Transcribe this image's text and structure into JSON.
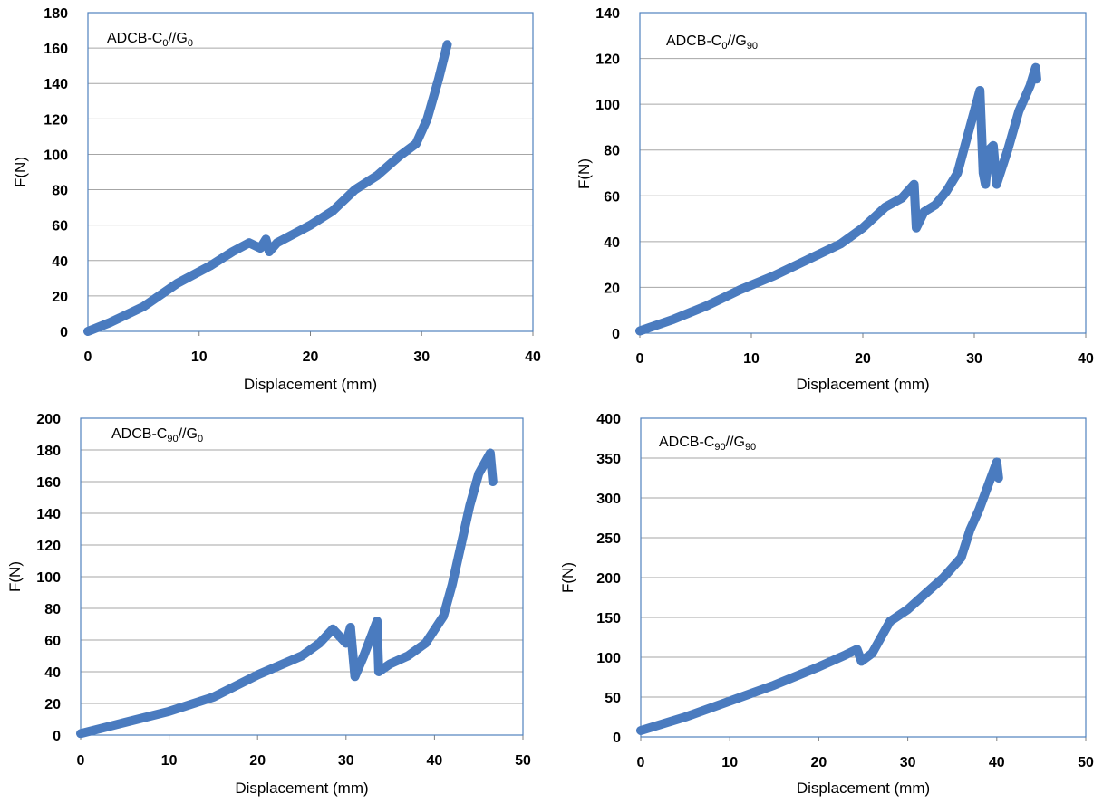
{
  "colors": {
    "series": "#4a7bbf",
    "grid": "#a6a6a6",
    "frame": "#4f81bd",
    "text": "#000000"
  },
  "chart_data": [
    {
      "type": "scatter",
      "title": {
        "main": "ADCB-C",
        "sub1": "0",
        "mid": "//G",
        "sub2": "0"
      },
      "xlabel": "Displacement (mm)",
      "ylabel": "F(N)",
      "xlim": [
        0,
        40
      ],
      "ylim": [
        0,
        180
      ],
      "xticks": [
        "0",
        "10",
        "20",
        "30",
        "40"
      ],
      "yticks": [
        "0",
        "20",
        "40",
        "60",
        "80",
        "100",
        "120",
        "140",
        "160",
        "180"
      ],
      "grid": "horizontal",
      "legend": "none",
      "series": [
        {
          "points": [
            [
              0,
              0
            ],
            [
              2,
              5
            ],
            [
              5,
              14
            ],
            [
              8,
              27
            ],
            [
              11,
              37
            ],
            [
              13,
              45
            ],
            [
              14.5,
              50
            ],
            [
              15.5,
              47
            ],
            [
              16,
              52
            ],
            [
              16.3,
              45
            ],
            [
              17,
              50
            ],
            [
              20,
              60
            ],
            [
              22,
              68
            ],
            [
              24,
              80
            ],
            [
              26,
              88
            ],
            [
              28,
              99
            ],
            [
              29.5,
              106
            ],
            [
              30.5,
              120
            ],
            [
              31.5,
              142
            ],
            [
              32.3,
              162
            ]
          ]
        }
      ]
    },
    {
      "type": "scatter",
      "title": {
        "main": "ADCB-C",
        "sub1": "0",
        "mid": "//G",
        "sub2": "90"
      },
      "xlabel": "Displacement (mm)",
      "ylabel": "F(N)",
      "xlim": [
        0,
        40
      ],
      "ylim": [
        0,
        140
      ],
      "xticks": [
        "0",
        "10",
        "20",
        "30",
        "40"
      ],
      "yticks": [
        "0",
        "20",
        "40",
        "60",
        "80",
        "100",
        "120",
        "140"
      ],
      "grid": "horizontal",
      "legend": "none",
      "series": [
        {
          "points": [
            [
              0,
              1
            ],
            [
              3,
              6
            ],
            [
              6,
              12
            ],
            [
              9,
              19
            ],
            [
              12,
              25
            ],
            [
              15,
              32
            ],
            [
              18,
              39
            ],
            [
              20,
              46
            ],
            [
              22,
              55
            ],
            [
              23.5,
              59
            ],
            [
              24.6,
              65
            ],
            [
              24.8,
              46
            ],
            [
              25.5,
              53
            ],
            [
              26.5,
              56
            ],
            [
              27.5,
              62
            ],
            [
              28.5,
              70
            ],
            [
              29.5,
              88
            ],
            [
              30.5,
              106
            ],
            [
              30.8,
              70
            ],
            [
              31,
              65
            ],
            [
              31.3,
              80
            ],
            [
              31.7,
              82
            ],
            [
              32,
              65
            ],
            [
              33,
              80
            ],
            [
              34,
              97
            ],
            [
              35,
              108
            ],
            [
              35.5,
              116
            ],
            [
              35.6,
              111
            ]
          ]
        }
      ]
    },
    {
      "type": "scatter",
      "title": {
        "main": "ADCB-C",
        "sub1": "90",
        "mid": "//G",
        "sub2": "0"
      },
      "xlabel": "Displacement (mm)",
      "ylabel": "F(N)",
      "xlim": [
        0,
        50
      ],
      "ylim": [
        0,
        200
      ],
      "xticks": [
        "0",
        "10",
        "20",
        "30",
        "40",
        "50"
      ],
      "yticks": [
        "0",
        "20",
        "40",
        "60",
        "80",
        "100",
        "120",
        "140",
        "160",
        "180",
        "200"
      ],
      "grid": "horizontal",
      "legend": "none",
      "series": [
        {
          "points": [
            [
              0,
              1
            ],
            [
              5,
              8
            ],
            [
              10,
              15
            ],
            [
              15,
              24
            ],
            [
              20,
              38
            ],
            [
              25,
              50
            ],
            [
              27,
              58
            ],
            [
              28.5,
              67
            ],
            [
              30,
              58
            ],
            [
              30.5,
              68
            ],
            [
              31,
              37
            ],
            [
              32,
              50
            ],
            [
              33.5,
              72
            ],
            [
              33.7,
              40
            ],
            [
              35,
              45
            ],
            [
              37,
              50
            ],
            [
              39,
              58
            ],
            [
              41,
              75
            ],
            [
              42,
              95
            ],
            [
              43,
              120
            ],
            [
              44,
              145
            ],
            [
              45,
              165
            ],
            [
              46.3,
              178
            ],
            [
              46.6,
              160
            ]
          ]
        }
      ]
    },
    {
      "type": "scatter",
      "title": {
        "main": "ADCB-C",
        "sub1": "90",
        "mid": "//G",
        "sub2": "90"
      },
      "xlabel": "Displacement (mm)",
      "ylabel": "F(N)",
      "xlim": [
        0,
        50
      ],
      "ylim": [
        0,
        400
      ],
      "xticks": [
        "0",
        "10",
        "20",
        "30",
        "40",
        "50"
      ],
      "yticks": [
        "0",
        "50",
        "100",
        "150",
        "200",
        "250",
        "300",
        "350",
        "400"
      ],
      "grid": "horizontal",
      "legend": "none",
      "series": [
        {
          "points": [
            [
              0,
              8
            ],
            [
              5,
              25
            ],
            [
              10,
              45
            ],
            [
              15,
              65
            ],
            [
              20,
              88
            ],
            [
              23,
              103
            ],
            [
              24.3,
              110
            ],
            [
              24.8,
              95
            ],
            [
              26,
              105
            ],
            [
              27,
              125
            ],
            [
              28,
              145
            ],
            [
              30,
              160
            ],
            [
              32,
              180
            ],
            [
              34,
              200
            ],
            [
              36,
              225
            ],
            [
              37,
              260
            ],
            [
              38,
              285
            ],
            [
              39,
              315
            ],
            [
              40,
              345
            ],
            [
              40.2,
              325
            ]
          ]
        }
      ]
    }
  ]
}
